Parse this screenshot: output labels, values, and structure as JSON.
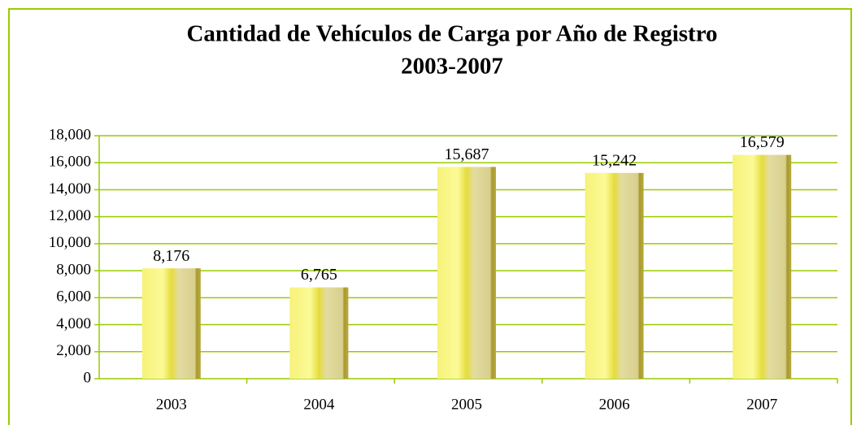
{
  "chart_data": {
    "type": "bar",
    "title": [
      "Cantidad de Vehículos de Carga por Año de Registro",
      "2003-2007"
    ],
    "categories": [
      "2003",
      "2004",
      "2005",
      "2006",
      "2007"
    ],
    "values": [
      8176,
      6765,
      15687,
      15242,
      16579
    ],
    "value_labels": [
      "8,176",
      "6,765",
      "15,687",
      "15,242",
      "16,579"
    ],
    "color": "#f2ee5a",
    "ylim": [
      0,
      18000
    ],
    "yticks": [
      0,
      {
        "value": 2000,
        "label": "2,000"
      },
      {
        "value": 4000,
        "label": "4,000"
      },
      {
        "value": 6000,
        "label": "6,000"
      },
      {
        "value": 8000,
        "label": "8,000"
      },
      {
        "value": 10000,
        "label": "10,000"
      },
      {
        "value": 12000,
        "label": "12,000"
      },
      {
        "value": 14000,
        "label": "14,000"
      },
      {
        "value": 16000,
        "label": "16,000"
      },
      {
        "value": 18000,
        "label": "18,000"
      }
    ],
    "grid": true
  }
}
